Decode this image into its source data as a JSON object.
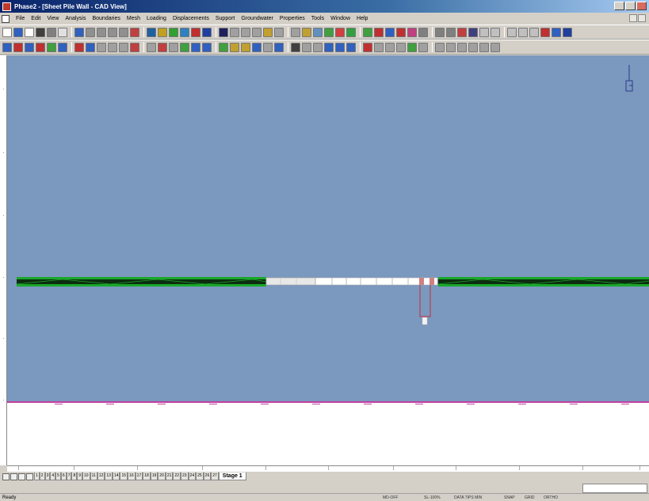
{
  "window": {
    "title": "Phase2 - [Sheet Pile Wall - CAD View]"
  },
  "menu": {
    "items": [
      {
        "label": "File"
      },
      {
        "label": "Edit"
      },
      {
        "label": "View"
      },
      {
        "label": "Analysis"
      },
      {
        "label": "Boundaries"
      },
      {
        "label": "Mesh"
      },
      {
        "label": "Loading"
      },
      {
        "label": "Displacements"
      },
      {
        "label": "Support"
      },
      {
        "label": "Groundwater"
      },
      {
        "label": "Properties"
      },
      {
        "label": "Tools"
      },
      {
        "label": "Window"
      },
      {
        "label": "Help"
      }
    ]
  },
  "toolbar": {
    "row1_colors": [
      "#ffffff",
      "#3060c0",
      "#ffffff",
      "#404040",
      "#808080",
      "#e0e0e0",
      "#3060c0",
      "#909090",
      "#909090",
      "#909090",
      "#909090",
      "#c04040",
      "#2060a0",
      "#c0a020",
      "#30a030",
      "#3080c0",
      "#c03030",
      "#2040a0",
      "#202060",
      "#a0a0a0",
      "#a0a0a0",
      "#a0a0a0",
      "#c0a030",
      "#a0a0a0",
      "#a0a0a0",
      "#c0a030",
      "#6090c0",
      "#40a040",
      "#d04040",
      "#30a040",
      "#40a040",
      "#c03030",
      "#3060c0",
      "#c03030",
      "#c04080",
      "#808080",
      "#808080",
      "#808080",
      "#c04040",
      "#404080",
      "#c0c0c0",
      "#c0c0c0",
      "#c0c0c0",
      "#c0c0c0",
      "#c0c0c0",
      "#c03030",
      "#3060c0",
      "#2040a0"
    ],
    "row2_colors": [
      "#3060c0",
      "#c03030",
      "#3060c0",
      "#c03030",
      "#40a040",
      "#3060c0",
      "#c03030",
      "#3060c0",
      "#a0a0a0",
      "#a0a0a0",
      "#a0a0a0",
      "#c04040",
      "#a0a0a0",
      "#c04040",
      "#a0a0a0",
      "#40a040",
      "#3060c0",
      "#3060c0",
      "#40a040",
      "#c0a030",
      "#c0a030",
      "#3060c0",
      "#a0a0a0",
      "#3060c0",
      "#404040",
      "#a0a0a0",
      "#a0a0a0",
      "#3060c0",
      "#3060c0",
      "#3060c0",
      "#c03030",
      "#a0a0a0",
      "#a0a0a0",
      "#a0a0a0",
      "#40a040",
      "#a0a0a0",
      "#a0a0a0",
      "#a0a0a0",
      "#a0a0a0",
      "#a0a0a0",
      "#a0a0a0",
      "#a0a0a0"
    ]
  },
  "stage_tabs": {
    "items": [
      {
        "label": "1"
      },
      {
        "label": "2"
      },
      {
        "label": "3"
      },
      {
        "label": "4"
      },
      {
        "label": "5"
      },
      {
        "label": "6"
      },
      {
        "label": "7"
      },
      {
        "label": "8"
      },
      {
        "label": "9"
      },
      {
        "label": "10"
      },
      {
        "label": "11"
      },
      {
        "label": "12"
      },
      {
        "label": "13"
      },
      {
        "label": "14"
      },
      {
        "label": "15"
      },
      {
        "label": "16"
      },
      {
        "label": "17"
      },
      {
        "label": "18"
      },
      {
        "label": "19"
      },
      {
        "label": "20"
      },
      {
        "label": "21"
      },
      {
        "label": "22"
      },
      {
        "label": "23"
      },
      {
        "label": "24"
      },
      {
        "label": "25"
      },
      {
        "label": "26"
      },
      {
        "label": "27"
      }
    ],
    "active_label": "Stage 1"
  },
  "status": {
    "ready": "Ready",
    "cells": [
      {
        "label": "MD-OFF"
      },
      {
        "label": "SL-100%"
      },
      {
        "label": "DATA TIPS MIN"
      },
      {
        "label": "SNAP"
      },
      {
        "label": "GRID"
      },
      {
        "label": "ORTHO"
      }
    ]
  },
  "colors": {
    "viewport_bg": "#7b98bf",
    "ground_line": "#c040a0",
    "wall_green": "#1aa82a",
    "wall_dark": "#0c2e10",
    "excavation_outline": "#c0303a"
  }
}
